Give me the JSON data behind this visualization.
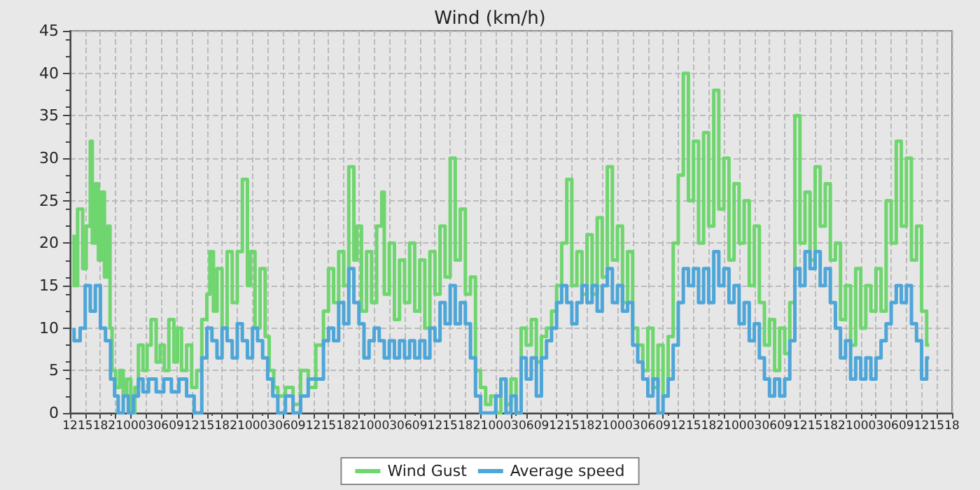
{
  "chart_data": {
    "type": "step",
    "title": "Wind (km/h)",
    "legend": "bottom",
    "grid": true,
    "marker": "none",
    "line_style": "solid",
    "xlim": [
      12,
      186
    ],
    "ylim": [
      0,
      45
    ],
    "yticks": [
      0,
      5,
      10,
      15,
      20,
      25,
      30,
      35,
      40,
      45
    ],
    "xticks": [
      {
        "value": 12,
        "label": "12"
      },
      {
        "value": 15,
        "label": "15"
      },
      {
        "value": 18,
        "label": "18"
      },
      {
        "value": 21,
        "label": "21"
      },
      {
        "value": 24,
        "label": "00"
      },
      {
        "value": 27,
        "label": "03"
      },
      {
        "value": 30,
        "label": "06"
      },
      {
        "value": 33,
        "label": "09"
      },
      {
        "value": 36,
        "label": "12"
      },
      {
        "value": 39,
        "label": "15"
      },
      {
        "value": 42,
        "label": "18"
      },
      {
        "value": 45,
        "label": "21"
      },
      {
        "value": 48,
        "label": "00"
      },
      {
        "value": 51,
        "label": "03"
      },
      {
        "value": 54,
        "label": "06"
      },
      {
        "value": 57,
        "label": "09"
      },
      {
        "value": 60,
        "label": "12"
      },
      {
        "value": 63,
        "label": "15"
      },
      {
        "value": 66,
        "label": "18"
      },
      {
        "value": 69,
        "label": "21"
      },
      {
        "value": 72,
        "label": "00"
      },
      {
        "value": 75,
        "label": "03"
      },
      {
        "value": 78,
        "label": "06"
      },
      {
        "value": 81,
        "label": "09"
      },
      {
        "value": 84,
        "label": "12"
      },
      {
        "value": 87,
        "label": "15"
      },
      {
        "value": 90,
        "label": "18"
      },
      {
        "value": 93,
        "label": "21"
      },
      {
        "value": 96,
        "label": "00"
      },
      {
        "value": 99,
        "label": "03"
      },
      {
        "value": 102,
        "label": "06"
      },
      {
        "value": 105,
        "label": "09"
      },
      {
        "value": 108,
        "label": "12"
      },
      {
        "value": 111,
        "label": "15"
      },
      {
        "value": 114,
        "label": "18"
      },
      {
        "value": 117,
        "label": "21"
      },
      {
        "value": 120,
        "label": "00"
      },
      {
        "value": 123,
        "label": "03"
      },
      {
        "value": 126,
        "label": "06"
      },
      {
        "value": 129,
        "label": "09"
      },
      {
        "value": 132,
        "label": "12"
      },
      {
        "value": 135,
        "label": "15"
      },
      {
        "value": 138,
        "label": "18"
      },
      {
        "value": 141,
        "label": "21"
      },
      {
        "value": 144,
        "label": "00"
      },
      {
        "value": 147,
        "label": "03"
      },
      {
        "value": 150,
        "label": "06"
      },
      {
        "value": 153,
        "label": "09"
      },
      {
        "value": 156,
        "label": "12"
      },
      {
        "value": 159,
        "label": "15"
      },
      {
        "value": 162,
        "label": "18"
      },
      {
        "value": 165,
        "label": "21"
      },
      {
        "value": 168,
        "label": "00"
      },
      {
        "value": 171,
        "label": "03"
      },
      {
        "value": 174,
        "label": "06"
      },
      {
        "value": 177,
        "label": "09"
      },
      {
        "value": 180,
        "label": "12"
      },
      {
        "value": 183,
        "label": "15"
      },
      {
        "value": 186,
        "label": "18"
      }
    ],
    "series": [
      {
        "name": "Wind Gust",
        "color": "#6fd66f",
        "x": [
          12.8,
          13.5,
          14.5,
          15.2,
          16,
          16.4,
          17,
          17.6,
          18.2,
          18.8,
          19.4,
          19.9,
          20.3,
          21,
          21.8,
          22.5,
          23.2,
          24,
          24.8,
          25.5,
          26.4,
          27.2,
          28,
          29,
          29.8,
          30.6,
          31.5,
          32.5,
          33.2,
          34,
          35,
          36,
          37,
          38,
          39,
          39.6,
          40.3,
          41,
          42,
          43,
          44,
          45,
          46,
          47,
          47.6,
          48.5,
          49.5,
          50.5,
          51.3,
          52.2,
          53,
          54.5,
          56,
          57.5,
          59,
          60.5,
          62,
          63,
          64,
          65,
          66,
          67,
          68,
          68.6,
          69.5,
          70.5,
          71.5,
          72.5,
          73.5,
          74,
          75,
          76,
          77,
          78,
          79,
          80,
          81,
          82,
          83,
          84,
          85,
          86,
          87,
          88,
          89,
          90,
          91,
          92,
          93,
          94,
          95,
          96,
          97,
          98,
          99,
          100,
          101,
          102,
          103,
          104,
          105,
          106,
          107,
          108,
          109,
          110,
          111,
          112,
          113,
          114,
          115,
          116,
          117,
          118,
          119,
          120,
          121,
          122,
          123,
          124,
          125,
          126,
          127,
          128,
          129,
          130,
          131,
          132,
          133,
          134,
          135,
          136,
          137,
          138,
          139,
          140,
          141,
          142,
          143,
          144,
          145,
          146,
          147,
          148,
          149,
          150,
          151,
          152,
          153,
          154,
          155,
          156,
          157,
          158,
          159,
          160,
          161,
          162,
          163,
          164,
          165,
          166,
          167,
          168,
          169,
          170,
          171,
          172,
          173,
          174,
          175,
          176,
          177,
          178,
          179,
          180,
          181,
          181.5
        ],
        "values": [
          21,
          15,
          24,
          17,
          22,
          32,
          20,
          27,
          18,
          26,
          16,
          22,
          10,
          5,
          3,
          5,
          2,
          4,
          0,
          3,
          8,
          5,
          8,
          11,
          6,
          8,
          5,
          11,
          6,
          10,
          5,
          8,
          3,
          5,
          11,
          14,
          19,
          12,
          17,
          10,
          19,
          13,
          19,
          27.5,
          15,
          19,
          10,
          17,
          9,
          5,
          3,
          2,
          3,
          1,
          5,
          3,
          8,
          12,
          17,
          13,
          19,
          15,
          29,
          18,
          22,
          12,
          19,
          13,
          22,
          26,
          14,
          20,
          11,
          18,
          13,
          20,
          12,
          18,
          10,
          19,
          14,
          22,
          16,
          30,
          18,
          24,
          14,
          16,
          5,
          3,
          1,
          2,
          0,
          4,
          1,
          4,
          0,
          10,
          8,
          11,
          6,
          9,
          10,
          12,
          15,
          20,
          27.5,
          15,
          19,
          14,
          21,
          14,
          23,
          16,
          29,
          18,
          22,
          13,
          19,
          10,
          8,
          5,
          10,
          3,
          8,
          2,
          9,
          20,
          28,
          40,
          25,
          32,
          20,
          33,
          22,
          38,
          24,
          30,
          18,
          27,
          20,
          25,
          15,
          22,
          13,
          8,
          11,
          5,
          10,
          7,
          13,
          35,
          20,
          26,
          18,
          29,
          22,
          27,
          18,
          20,
          11,
          15,
          8,
          17,
          10,
          15,
          12,
          17,
          12,
          25,
          20,
          32,
          22,
          30,
          18,
          22,
          12,
          8
        ]
      },
      {
        "name": "Average speed",
        "color": "#4ea6d8",
        "x": [
          12.8,
          14,
          15,
          16,
          17,
          18,
          19,
          20,
          20.8,
          21.5,
          22.5,
          23.5,
          24.5,
          25.5,
          26.4,
          27.5,
          29,
          30.5,
          32,
          33.5,
          35,
          36.5,
          38,
          39,
          40,
          41,
          42,
          43,
          44,
          45,
          46,
          47,
          48,
          49,
          50,
          51,
          52,
          53,
          54.5,
          56,
          57.5,
          59,
          60.5,
          62,
          63,
          64,
          65,
          66,
          67,
          68,
          69,
          70,
          71,
          72,
          73,
          74,
          75,
          76,
          77,
          78,
          79,
          80,
          81,
          82,
          83,
          84,
          85,
          86,
          87,
          88,
          89,
          90,
          91,
          92,
          93,
          94,
          96,
          97,
          98,
          99,
          100,
          101,
          102,
          103,
          104,
          105,
          106,
          107,
          108,
          109,
          110,
          111,
          112,
          113,
          114,
          115,
          116,
          117,
          118,
          119,
          120,
          121,
          122,
          123,
          124,
          125,
          126,
          127,
          128,
          129,
          130,
          131,
          132,
          133,
          134,
          135,
          136,
          137,
          138,
          139,
          140,
          141,
          142,
          143,
          144,
          145,
          146,
          147,
          148,
          149,
          150,
          151,
          152,
          153,
          154,
          155,
          156,
          157,
          158,
          159,
          160,
          161,
          162,
          163,
          164,
          165,
          166,
          167,
          168,
          169,
          170,
          171,
          172,
          173,
          174,
          175,
          176,
          177,
          178,
          179,
          180,
          181,
          181.5
        ],
        "values": [
          10,
          8.5,
          10,
          15,
          12,
          15,
          10,
          8.5,
          4,
          2,
          0,
          2,
          0,
          2,
          4,
          2.5,
          4,
          2.5,
          4,
          2.5,
          4,
          2,
          0,
          6.5,
          10,
          8.5,
          6.5,
          10,
          8.5,
          6.5,
          10.5,
          8.5,
          6.5,
          10,
          8.5,
          6.5,
          4,
          2,
          0,
          2,
          0,
          2,
          4,
          4,
          8.5,
          10,
          8.5,
          13,
          10.5,
          17,
          13,
          10.5,
          6.5,
          8.5,
          10,
          8.5,
          6.5,
          8.5,
          6.5,
          8.5,
          6.5,
          8.5,
          6.5,
          8.5,
          6.5,
          10,
          8.5,
          13,
          10.5,
          15,
          10.5,
          13,
          10.5,
          6.5,
          2,
          0,
          0,
          2,
          4,
          0,
          2,
          0,
          6.5,
          4,
          6.5,
          2,
          6.5,
          8.5,
          10,
          13,
          15,
          13,
          10.5,
          13,
          15,
          13,
          15,
          12,
          15,
          17,
          13,
          15,
          12,
          13,
          8,
          6,
          4,
          2,
          4,
          0,
          2,
          4,
          8,
          13,
          17,
          15,
          17,
          13,
          17,
          13,
          19,
          15,
          17,
          13,
          15,
          10.5,
          13,
          8.5,
          10.5,
          6.5,
          4,
          2,
          4,
          2,
          4,
          8.5,
          17,
          15,
          19,
          17,
          19,
          15,
          17,
          13,
          10,
          6.5,
          8.5,
          4,
          6.5,
          4,
          6.5,
          4,
          6.5,
          8.5,
          10.5,
          13,
          15,
          13,
          15,
          10.5,
          8.5,
          4,
          6.5
        ]
      }
    ]
  }
}
